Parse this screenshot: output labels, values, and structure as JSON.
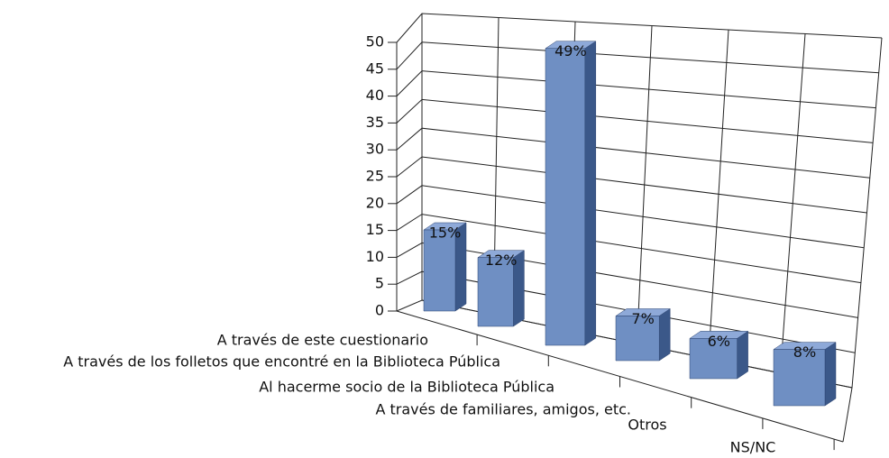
{
  "chart_data": {
    "type": "bar3d",
    "categories": [
      "A través de este cuestionario",
      "A través de los folletos que encontré en la Biblioteca Pública",
      "Al hacerme socio de la Biblioteca Pública",
      "A través de familiares, amigos, etc.",
      "Otros",
      "NS/NC"
    ],
    "values": [
      15,
      12,
      49,
      7,
      6,
      8
    ],
    "value_labels": [
      "15%",
      "12%",
      "49%",
      "7%",
      "6%",
      "8%"
    ],
    "color": "#6f8fc3",
    "ylim": [
      0,
      50
    ],
    "yticks": [
      0,
      5,
      10,
      15,
      20,
      25,
      30,
      35,
      40,
      45,
      50
    ],
    "grid": true
  }
}
